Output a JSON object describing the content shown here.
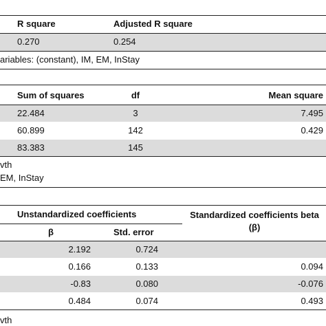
{
  "tables": [
    {
      "headers": [
        "R square",
        "Adjusted R square"
      ],
      "rows": [
        [
          "0.270",
          "0.254"
        ]
      ],
      "notes": [
        "ariables: (constant), IM, EM, InStay"
      ]
    },
    {
      "headers": [
        "Sum of squares",
        "df",
        "Mean square"
      ],
      "rows": [
        [
          "22.484",
          "3",
          "7.495"
        ],
        [
          "60.899",
          "142",
          "0.429"
        ],
        [
          "83.383",
          "145",
          null
        ]
      ],
      "notes": [
        "vth",
        "EM, InStay"
      ]
    },
    {
      "group_headers": [
        "Unstandardized coefficients",
        "Standardized coefficients beta (β)"
      ],
      "headers": [
        "β",
        "Std. error"
      ],
      "rows": [
        [
          "2.192",
          "0.724",
          null
        ],
        [
          "0.166",
          "0.133",
          "0.094"
        ],
        [
          "-0.83",
          "0.080",
          "-0.076"
        ],
        [
          "0.484",
          "0.074",
          "0.493"
        ]
      ],
      "notes": [
        "vth"
      ]
    }
  ]
}
